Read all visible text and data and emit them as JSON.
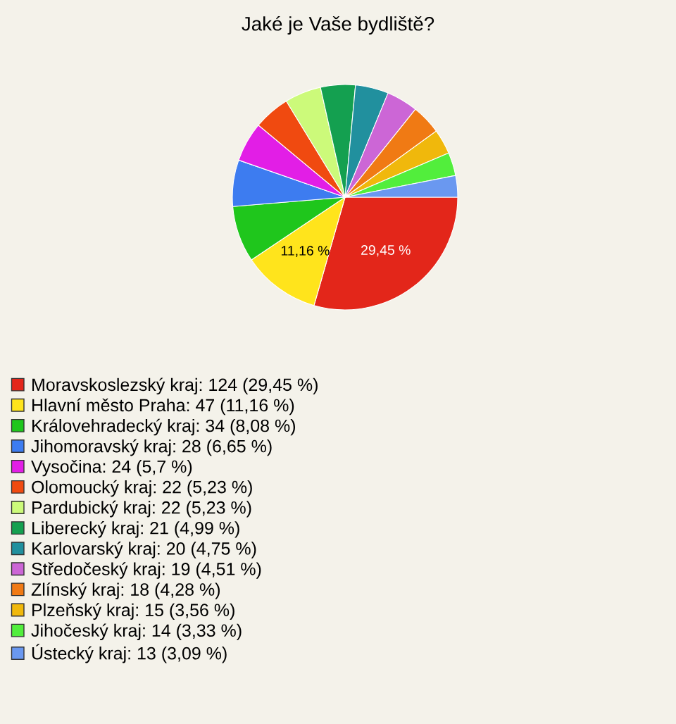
{
  "chart_data": {
    "type": "pie",
    "title": "Jaké je Vaše bydliště?",
    "categories": [
      "Moravskoslezský kraj: 124 (29,45 %)",
      "Hlavní město Praha: 47 (11,16 %)",
      "Královehradecký kraj: 34 (8,08 %)",
      "Jihomoravský kraj: 28 (6,65 %)",
      "Vysočina: 24 (5,7 %)",
      "Olomoucký kraj: 22 (5,23 %)",
      "Pardubický kraj: 22 (5,23 %)",
      "Liberecký kraj: 21 (4,99 %)",
      "Karlovarský kraj: 20 (4,75 %)",
      "Středočeský kraj: 19 (4,51 %)",
      "Zlínský kraj: 18 (4,28 %)",
      "Plzeňský kraj: 15 (3,56 %)",
      "Jihočeský kraj: 14 (3,33 %)",
      "Ústecký kraj: 13 (3,09 %)"
    ],
    "values": [
      29.45,
      11.16,
      8.08,
      6.65,
      5.7,
      5.23,
      5.23,
      4.99,
      4.75,
      4.51,
      4.28,
      3.56,
      3.33,
      3.09
    ],
    "value_labels": [
      "29,45 %",
      "11,16 %",
      null,
      null,
      null,
      null,
      null,
      null,
      null,
      null,
      null,
      null,
      null,
      null
    ],
    "colors": [
      "#e3261a",
      "#ffe41c",
      "#1fc61c",
      "#3d7cf0",
      "#e21ee6",
      "#f04a10",
      "#ccfa7a",
      "#14a050",
      "#21909e",
      "#cc66d6",
      "#f07a14",
      "#f0b80c",
      "#52ee3c",
      "#6a98f0"
    ],
    "legend": "bottom"
  }
}
